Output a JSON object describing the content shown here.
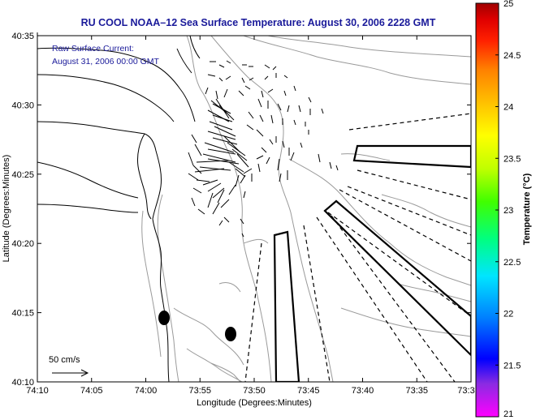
{
  "title": "RU COOL  NOAA–12  Sea Surface Temperature:  August 30, 2006 2228 GMT",
  "annotation": {
    "line1": "Raw Surface Current:",
    "line2": "August 31, 2006 00:00 GMT"
  },
  "scale_label": "50 cm/s",
  "x_axis": {
    "label": "Longitude (Degrees:Minutes)",
    "ticks": [
      "74:10",
      "74:05",
      "74:00",
      "73:55",
      "73:50",
      "73:45",
      "73:40",
      "73:35",
      "73:3"
    ]
  },
  "y_axis": {
    "label": "Latitude (Degrees:Minutes)",
    "ticks": [
      "40:35",
      "40:30",
      "40:25",
      "40:20",
      "40:15",
      "40:10"
    ]
  },
  "colorbar": {
    "label": "Temperature (°C)",
    "ticks": [
      "25",
      "24.5",
      "24",
      "23.5",
      "23",
      "22.5",
      "22",
      "21.5",
      "21"
    ],
    "min": 21,
    "max": 25,
    "colors": [
      "#ff00ff",
      "#8a2be2",
      "#0000ff",
      "#0080ff",
      "#00e5ff",
      "#00ff80",
      "#40ff00",
      "#c0ff00",
      "#ffff00",
      "#ffc000",
      "#ff8000",
      "#ff2000",
      "#e00000",
      "#a00000"
    ]
  },
  "colors": {
    "title": "#1a1a9a",
    "coastline": "#000000",
    "bathymetry": "#9a9a9a",
    "vectors": "#000000"
  }
}
